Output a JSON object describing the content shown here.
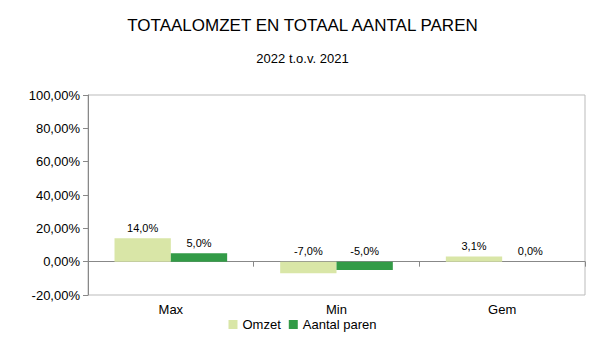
{
  "chart_data": {
    "type": "bar",
    "title": "TOTAALOMZET EN TOTAAL AANTAL PAREN",
    "subtitle": "2022 t.o.v. 2021",
    "categories": [
      "Max",
      "Min",
      "Gem"
    ],
    "series": [
      {
        "name": "Omzet",
        "color": "#d9e6a7",
        "values": [
          14,
          -7,
          3.1
        ],
        "value_labels": [
          "14,0%",
          "-7,0%",
          "3,1%"
        ]
      },
      {
        "name": "Aantal paren",
        "color": "#339b47",
        "values": [
          5,
          -5,
          0
        ],
        "value_labels": [
          "5,0%",
          "-5,0%",
          "0,0%"
        ]
      }
    ],
    "ylim": [
      -20,
      100
    ],
    "yticks": [
      {
        "value": -20,
        "label": "-20,00%"
      },
      {
        "value": 0,
        "label": "0,00%"
      },
      {
        "value": 20,
        "label": "20,00%"
      },
      {
        "value": 40,
        "label": "40,00%"
      },
      {
        "value": 60,
        "label": "60,00%"
      },
      {
        "value": 80,
        "label": "80,00%"
      },
      {
        "value": 100,
        "label": "100,00%"
      }
    ],
    "grid": false,
    "legend": "bottom",
    "data_labels": true
  }
}
